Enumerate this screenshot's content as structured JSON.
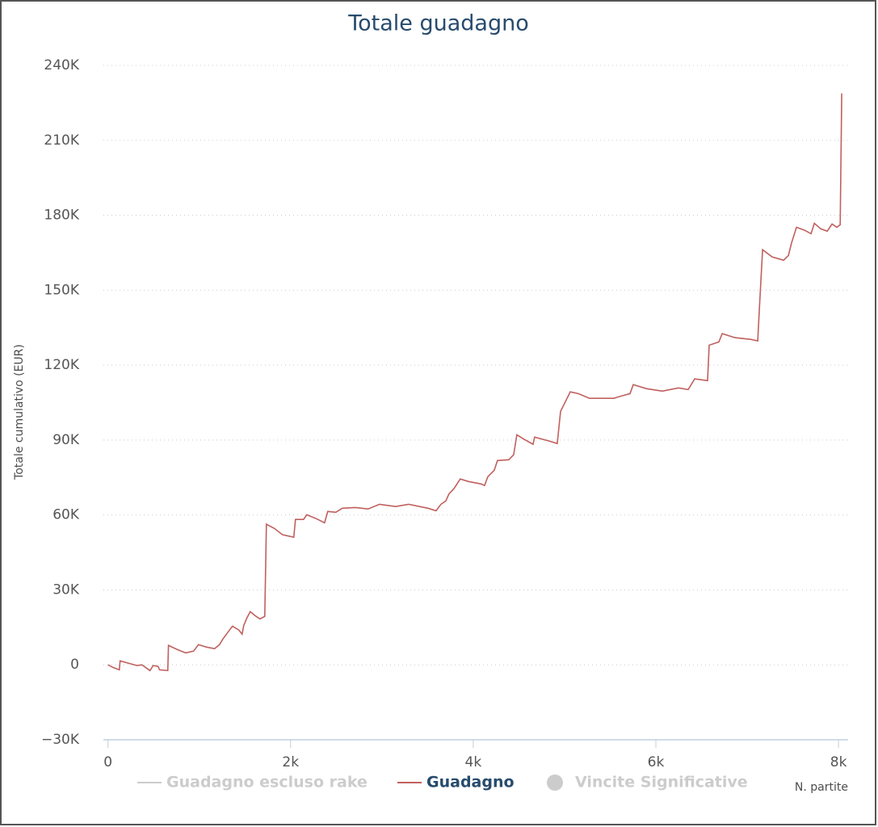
{
  "chart_data": {
    "type": "line",
    "title": "Totale guadagno",
    "x_label": "N. partite",
    "y_label": "Totale cumulativo (EUR)",
    "x": [
      0,
      53,
      124,
      133,
      230,
      318,
      372,
      460,
      495,
      548,
      566,
      655,
      663,
      761,
      850,
      938,
      991,
      1080,
      1168,
      1221,
      1257,
      1310,
      1363,
      1434,
      1469,
      1487,
      1522,
      1558,
      1611,
      1664,
      1717,
      1735,
      1823,
      1912,
      2035,
      2053,
      2142,
      2177,
      2283,
      2372,
      2407,
      2496,
      2566,
      2708,
      2849,
      2973,
      3150,
      3292,
      3504,
      3593,
      3646,
      3699,
      3735,
      3788,
      3858,
      3947,
      4088,
      4124,
      4159,
      4230,
      4265,
      4389,
      4442,
      4478,
      4548,
      4655,
      4672,
      4832,
      4920,
      4956,
      5009,
      5062,
      5150,
      5274,
      5540,
      5628,
      5717,
      5752,
      5894,
      6071,
      6248,
      6354,
      6425,
      6566,
      6584,
      6690,
      6726,
      6867,
      7044,
      7115,
      7133,
      7168,
      7274,
      7398,
      7451,
      7487,
      7540,
      7628,
      7699,
      7735,
      7805,
      7876,
      7929,
      7982,
      8018,
      8035
    ],
    "series": [
      {
        "name": "Guadagno escluso rake",
        "color": "#cccccc",
        "visible": false
      },
      {
        "name": "Guadagno",
        "color": "#c0605e",
        "visible": true,
        "values": [
          0,
          -1000,
          -2000,
          1600,
          600,
          -300,
          0,
          -2300,
          -300,
          -600,
          -2000,
          -2300,
          7800,
          6100,
          4800,
          5500,
          8100,
          7100,
          6500,
          8100,
          10300,
          12900,
          15500,
          13900,
          12300,
          15800,
          18800,
          21300,
          19700,
          18400,
          19400,
          56300,
          54600,
          52100,
          51100,
          58200,
          58200,
          60100,
          58500,
          56900,
          61400,
          61100,
          62700,
          63000,
          62400,
          64300,
          63400,
          64300,
          62700,
          61700,
          64300,
          65600,
          68500,
          70500,
          74400,
          73400,
          72400,
          71800,
          75300,
          77900,
          81800,
          82100,
          84100,
          92100,
          90500,
          88300,
          91200,
          89600,
          88600,
          101500,
          105400,
          109300,
          108600,
          106700,
          106700,
          107700,
          108600,
          112200,
          110600,
          109600,
          110900,
          110200,
          114500,
          113800,
          128000,
          129300,
          132600,
          131000,
          130300,
          129700,
          142300,
          166200,
          163300,
          162000,
          163900,
          169100,
          175200,
          174000,
          172600,
          176800,
          174600,
          173600,
          176500,
          175200,
          176200,
          228800
        ]
      },
      {
        "name": "Vincite Significative",
        "color": "#cccccc",
        "visible": false,
        "marker": "circle"
      }
    ],
    "xlim": [
      -50,
      8105
    ],
    "xticks": [
      0,
      {
        "value": 2000,
        "label": "2k"
      },
      {
        "value": 4000,
        "label": "4k"
      },
      {
        "value": 6000,
        "label": "6k"
      },
      {
        "value": 8000,
        "label": "8k"
      }
    ],
    "ylim": [
      -30000,
      240000
    ],
    "yticks": [
      {
        "value": -30000,
        "label": "−30K"
      },
      0,
      {
        "value": 30000,
        "label": "30K"
      },
      {
        "value": 60000,
        "label": "60K"
      },
      {
        "value": 90000,
        "label": "90K"
      },
      {
        "value": 120000,
        "label": "120K"
      },
      {
        "value": 150000,
        "label": "150K"
      },
      {
        "value": 180000,
        "label": "180K"
      },
      {
        "value": 210000,
        "label": "210K"
      },
      {
        "value": 240000,
        "label": "240K"
      }
    ],
    "grid": true
  }
}
